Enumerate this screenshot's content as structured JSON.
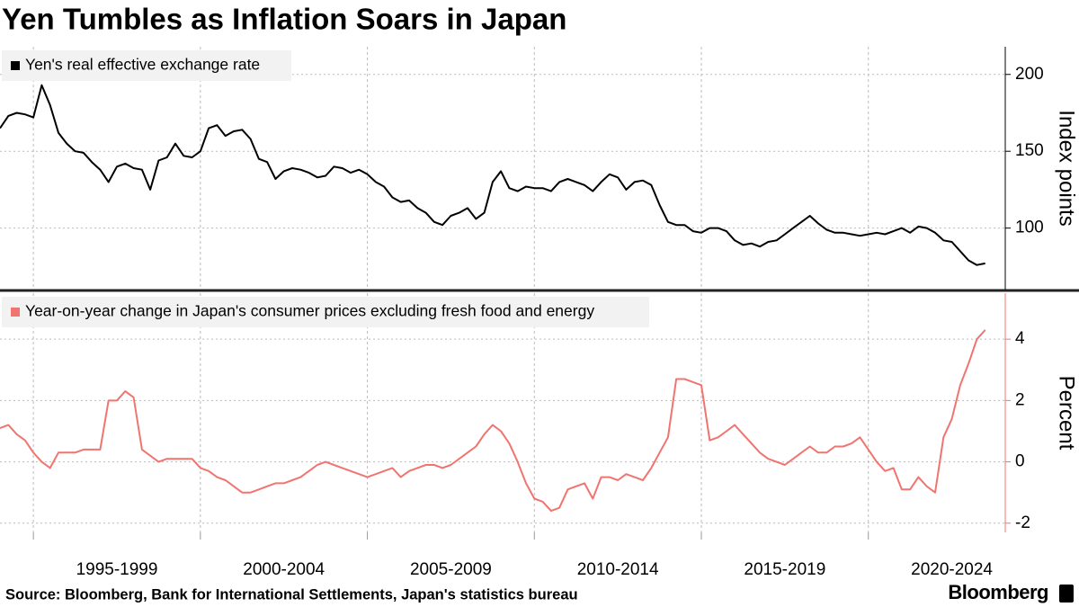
{
  "title": "Yen Tumbles as Inflation Soars in Japan",
  "source": "Source: Bloomberg, Bank for International Settlements, Japan's statistics bureau",
  "brand": "Bloomberg",
  "chart_data": [
    {
      "type": "line",
      "y_label": "Index points",
      "xlim": [
        1994,
        2024.1
      ],
      "ylim": [
        60,
        218
      ],
      "yticks": [
        100,
        150,
        200
      ],
      "grid": true,
      "legend": "top-left",
      "x": [
        1994,
        1994.25,
        1994.5,
        1994.75,
        1995,
        1995.25,
        1995.5,
        1995.75,
        1996,
        1996.25,
        1996.5,
        1996.75,
        1997,
        1997.25,
        1997.5,
        1997.75,
        1998,
        1998.25,
        1998.5,
        1998.75,
        1999,
        1999.25,
        1999.5,
        1999.75,
        2000,
        2000.25,
        2000.5,
        2000.75,
        2001,
        2001.25,
        2001.5,
        2001.75,
        2002,
        2002.25,
        2002.5,
        2002.75,
        2003,
        2003.25,
        2003.5,
        2003.75,
        2004,
        2004.25,
        2004.5,
        2004.75,
        2005,
        2005.25,
        2005.5,
        2005.75,
        2006,
        2006.25,
        2006.5,
        2006.75,
        2007,
        2007.25,
        2007.5,
        2007.75,
        2008,
        2008.25,
        2008.5,
        2008.75,
        2009,
        2009.25,
        2009.5,
        2009.75,
        2010,
        2010.25,
        2010.5,
        2010.75,
        2011,
        2011.25,
        2011.5,
        2011.75,
        2012,
        2012.25,
        2012.5,
        2012.75,
        2013,
        2013.25,
        2013.5,
        2013.75,
        2014,
        2014.25,
        2014.5,
        2014.75,
        2015,
        2015.25,
        2015.5,
        2015.75,
        2016,
        2016.25,
        2016.5,
        2016.75,
        2017,
        2017.25,
        2017.5,
        2017.75,
        2018,
        2018.25,
        2018.5,
        2018.75,
        2019,
        2019.25,
        2019.5,
        2019.75,
        2020,
        2020.25,
        2020.5,
        2020.75,
        2021,
        2021.25,
        2021.5,
        2021.75,
        2022,
        2022.25,
        2022.5,
        2022.75,
        2023,
        2023.25,
        2023.5
      ],
      "series": [
        {
          "name": "Yen's real effective exchange rate",
          "color": "#000000",
          "values": [
            165,
            173,
            175,
            174,
            172,
            193,
            180,
            162,
            155,
            150,
            149,
            143,
            138,
            130,
            140,
            142,
            139,
            138,
            125,
            144,
            146,
            155,
            147,
            146,
            150,
            165,
            167,
            160,
            163,
            164,
            158,
            145,
            143,
            132,
            137,
            139,
            138,
            136,
            133,
            134,
            140,
            139,
            136,
            138,
            135,
            130,
            127,
            120,
            117,
            118,
            113,
            110,
            104,
            102,
            108,
            110,
            113,
            106,
            110,
            130,
            137,
            126,
            124,
            127,
            126,
            126,
            124,
            130,
            132,
            130,
            128,
            124,
            130,
            135,
            133,
            125,
            130,
            131,
            128,
            115,
            104,
            102,
            102,
            98,
            97,
            100,
            100,
            98,
            92,
            89,
            90,
            88,
            91,
            92,
            96,
            100,
            104,
            108,
            103,
            99,
            97,
            97,
            96,
            95,
            96,
            97,
            96,
            98,
            100,
            97,
            101,
            100,
            97,
            92,
            91,
            85,
            79,
            76,
            77
          ]
        }
      ]
    },
    {
      "type": "line",
      "y_label": "Percent",
      "xlim": [
        1994,
        2024.1
      ],
      "ylim": [
        -2.3,
        5.5
      ],
      "yticks": [
        -2,
        0,
        2,
        4
      ],
      "grid": true,
      "legend": "top-left",
      "xticks": [
        {
          "value": 1995,
          "label": "1995-1999"
        },
        {
          "value": 2000,
          "label": "2000-2004"
        },
        {
          "value": 2005,
          "label": "2005-2009"
        },
        {
          "value": 2010,
          "label": "2010-2014"
        },
        {
          "value": 2015,
          "label": "2015-2019"
        },
        {
          "value": 2020,
          "label": "2020-2024"
        }
      ],
      "x": [
        1994,
        1994.25,
        1994.5,
        1994.75,
        1995,
        1995.25,
        1995.5,
        1995.75,
        1996,
        1996.25,
        1996.5,
        1996.75,
        1997,
        1997.25,
        1997.5,
        1997.75,
        1998,
        1998.25,
        1998.5,
        1998.75,
        1999,
        1999.25,
        1999.5,
        1999.75,
        2000,
        2000.25,
        2000.5,
        2000.75,
        2001,
        2001.25,
        2001.5,
        2001.75,
        2002,
        2002.25,
        2002.5,
        2002.75,
        2003,
        2003.25,
        2003.5,
        2003.75,
        2004,
        2004.25,
        2004.5,
        2004.75,
        2005,
        2005.25,
        2005.5,
        2005.75,
        2006,
        2006.25,
        2006.5,
        2006.75,
        2007,
        2007.25,
        2007.5,
        2007.75,
        2008,
        2008.25,
        2008.5,
        2008.75,
        2009,
        2009.25,
        2009.5,
        2009.75,
        2010,
        2010.25,
        2010.5,
        2010.75,
        2011,
        2011.25,
        2011.5,
        2011.75,
        2012,
        2012.25,
        2012.5,
        2012.75,
        2013,
        2013.25,
        2013.5,
        2013.75,
        2014,
        2014.25,
        2014.5,
        2014.75,
        2015,
        2015.25,
        2015.5,
        2015.75,
        2016,
        2016.25,
        2016.5,
        2016.75,
        2017,
        2017.25,
        2017.5,
        2017.75,
        2018,
        2018.25,
        2018.5,
        2018.75,
        2019,
        2019.25,
        2019.5,
        2019.75,
        2020,
        2020.25,
        2020.5,
        2020.75,
        2021,
        2021.25,
        2021.5,
        2021.75,
        2022,
        2022.25,
        2022.5,
        2022.75,
        2023,
        2023.25,
        2023.5
      ],
      "series": [
        {
          "name": "Year-on-year change in Japan's consumer prices excluding fresh food and energy",
          "color": "#f07470",
          "values": [
            1.1,
            1.2,
            0.9,
            0.7,
            0.3,
            0.0,
            -0.2,
            0.3,
            0.3,
            0.3,
            0.4,
            0.4,
            0.4,
            2.0,
            2.0,
            2.3,
            2.1,
            0.4,
            0.2,
            0.0,
            0.1,
            0.1,
            0.1,
            0.1,
            -0.2,
            -0.3,
            -0.5,
            -0.6,
            -0.8,
            -1.0,
            -1.0,
            -0.9,
            -0.8,
            -0.7,
            -0.7,
            -0.6,
            -0.5,
            -0.3,
            -0.1,
            0.0,
            -0.1,
            -0.2,
            -0.3,
            -0.4,
            -0.5,
            -0.4,
            -0.3,
            -0.2,
            -0.5,
            -0.3,
            -0.2,
            -0.1,
            -0.1,
            -0.2,
            -0.1,
            0.1,
            0.3,
            0.5,
            0.9,
            1.2,
            1.0,
            0.6,
            0.0,
            -0.7,
            -1.2,
            -1.3,
            -1.6,
            -1.5,
            -0.9,
            -0.8,
            -0.7,
            -1.2,
            -0.5,
            -0.5,
            -0.6,
            -0.4,
            -0.5,
            -0.6,
            -0.2,
            0.3,
            0.8,
            2.7,
            2.7,
            2.6,
            2.5,
            0.7,
            0.8,
            1.0,
            1.2,
            0.9,
            0.6,
            0.3,
            0.1,
            0.0,
            -0.1,
            0.1,
            0.3,
            0.5,
            0.3,
            0.3,
            0.5,
            0.5,
            0.6,
            0.8,
            0.4,
            0.0,
            -0.3,
            -0.2,
            -0.9,
            -0.9,
            -0.5,
            -0.8,
            -1.0,
            0.8,
            1.4,
            2.5,
            3.2,
            4.0,
            4.3
          ]
        }
      ]
    }
  ]
}
